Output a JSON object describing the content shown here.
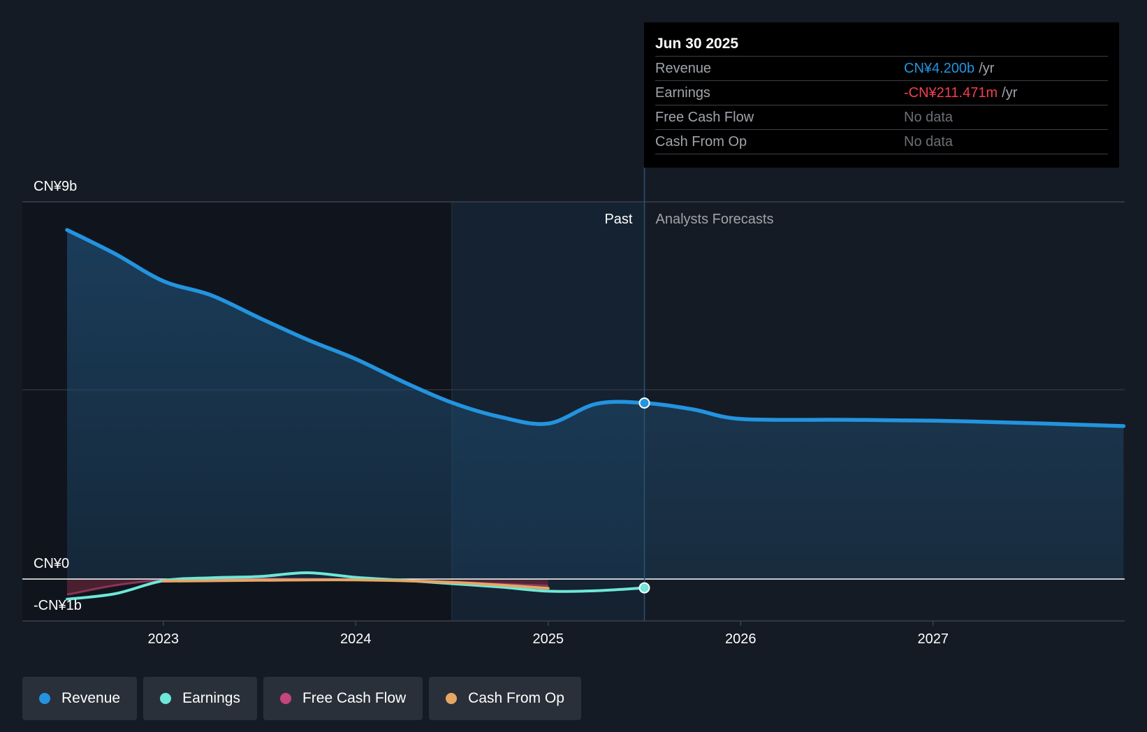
{
  "colors": {
    "revenue": "#2394df",
    "earnings": "#6ee7d8",
    "free_cash_flow": "#c6457d",
    "cash_from_op": "#e6a764",
    "negative": "#f04050",
    "muted": "#a0a4aa"
  },
  "tooltip": {
    "date": "Jun 30 2025",
    "rows": [
      {
        "label": "Revenue",
        "value": "CN¥4.200b",
        "unit": "/yr"
      },
      {
        "label": "Earnings",
        "value": "-CN¥211.471m",
        "unit": "/yr"
      },
      {
        "label": "Free Cash Flow",
        "value": "No data",
        "unit": ""
      },
      {
        "label": "Cash From Op",
        "value": "No data",
        "unit": ""
      }
    ]
  },
  "legend": [
    {
      "label": "Revenue",
      "icon": "revenue-dot-icon"
    },
    {
      "label": "Earnings",
      "icon": "earnings-dot-icon"
    },
    {
      "label": "Free Cash Flow",
      "icon": "free-cash-flow-dot-icon"
    },
    {
      "label": "Cash From Op",
      "icon": "cash-from-op-dot-icon"
    }
  ],
  "chart_data": {
    "type": "line",
    "y_unit": "CN¥ billions",
    "ylim": [
      -1,
      9
    ],
    "xlim": [
      2022.47,
      2027.99
    ],
    "y_tick_labels": [
      {
        "value": 9,
        "label": "CN¥9b"
      },
      {
        "value": 0,
        "label": "CN¥0"
      },
      {
        "value": -1,
        "label": "-CN¥1b"
      }
    ],
    "x_tick_labels": [
      {
        "value": 2023,
        "label": "2023"
      },
      {
        "value": 2024,
        "label": "2024"
      },
      {
        "value": 2025,
        "label": "2025"
      },
      {
        "value": 2026,
        "label": "2026"
      },
      {
        "value": 2027,
        "label": "2027"
      }
    ],
    "past_label": "Past",
    "forecast_label": "Analysts Forecasts",
    "divider_x": 2025.5,
    "shaded_band_start_x": 2024.5,
    "highlight_x": 2025.5,
    "series": [
      {
        "name": "Revenue",
        "key": "revenue",
        "x": [
          2022.5,
          2022.75,
          2023.0,
          2023.25,
          2023.5,
          2023.75,
          2024.0,
          2024.25,
          2024.5,
          2024.75,
          2025.0,
          2025.25,
          2025.5,
          2025.75,
          2026.0,
          2026.5,
          2027.0,
          2027.5,
          2027.99
        ],
        "values": [
          8.33,
          7.76,
          7.11,
          6.77,
          6.23,
          5.71,
          5.25,
          4.7,
          4.21,
          3.87,
          3.71,
          4.18,
          4.2,
          4.05,
          3.82,
          3.8,
          3.78,
          3.72,
          3.65
        ]
      },
      {
        "name": "Earnings",
        "key": "earnings",
        "x": [
          2022.5,
          2022.75,
          2023.0,
          2023.25,
          2023.5,
          2023.75,
          2024.0,
          2024.25,
          2024.5,
          2024.75,
          2025.0,
          2025.25,
          2025.5
        ],
        "values": [
          -0.48,
          -0.35,
          -0.04,
          0.03,
          0.06,
          0.15,
          0.04,
          -0.03,
          -0.11,
          -0.19,
          -0.29,
          -0.28,
          -0.21
        ]
      },
      {
        "name": "Free Cash Flow",
        "key": "free_cash_flow",
        "x": [
          2022.5,
          2023.0,
          2024.0,
          2025.0
        ],
        "values": [
          -0.37,
          -0.03,
          -0.01,
          -0.16
        ]
      },
      {
        "name": "Cash From Op",
        "key": "cash_from_op",
        "x": [
          2023.0,
          2023.5,
          2024.0,
          2024.5,
          2025.0
        ],
        "values": [
          -0.05,
          -0.03,
          -0.02,
          -0.08,
          -0.22
        ]
      }
    ]
  }
}
